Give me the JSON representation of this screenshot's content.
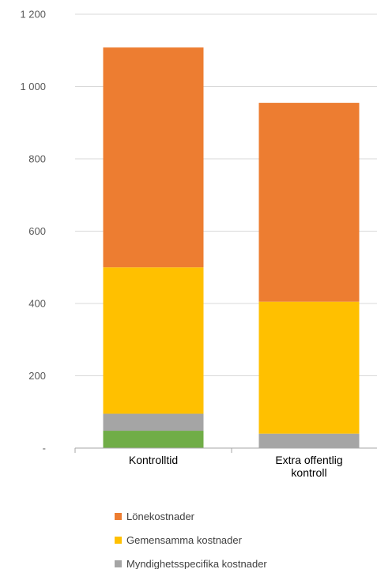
{
  "chart_data": {
    "type": "bar",
    "stacked": true,
    "categories": [
      [
        "Kontrolltid"
      ],
      [
        "Extra offentlig",
        "kontroll"
      ]
    ],
    "series": [
      {
        "name": "",
        "color": "#70AD47",
        "values": [
          48,
          0
        ]
      },
      {
        "name": "Myndighetsspecifika kostnader",
        "color": "#A5A5A5",
        "values": [
          47,
          40
        ]
      },
      {
        "name": "Gemensamma kostnader",
        "color": "#FFC000",
        "values": [
          405,
          365
        ]
      },
      {
        "name": "Lönekostnader",
        "color": "#ED7D31",
        "values": [
          608,
          550
        ]
      }
    ],
    "ylim": [
      0,
      1200
    ],
    "yticks": [
      {
        "value": 0,
        "label": "-"
      },
      {
        "value": 200,
        "label": "200"
      },
      {
        "value": 400,
        "label": "400"
      },
      {
        "value": 600,
        "label": "600"
      },
      {
        "value": 800,
        "label": "800"
      },
      {
        "value": 1000,
        "label": "1 000"
      },
      {
        "value": 1200,
        "label": "1 200"
      }
    ],
    "grid": true,
    "legend": {
      "placement": "bottom",
      "order": [
        "Lönekostnader",
        "Gemensamma kostnader",
        "Myndighetsspecifika kostnader"
      ]
    }
  }
}
